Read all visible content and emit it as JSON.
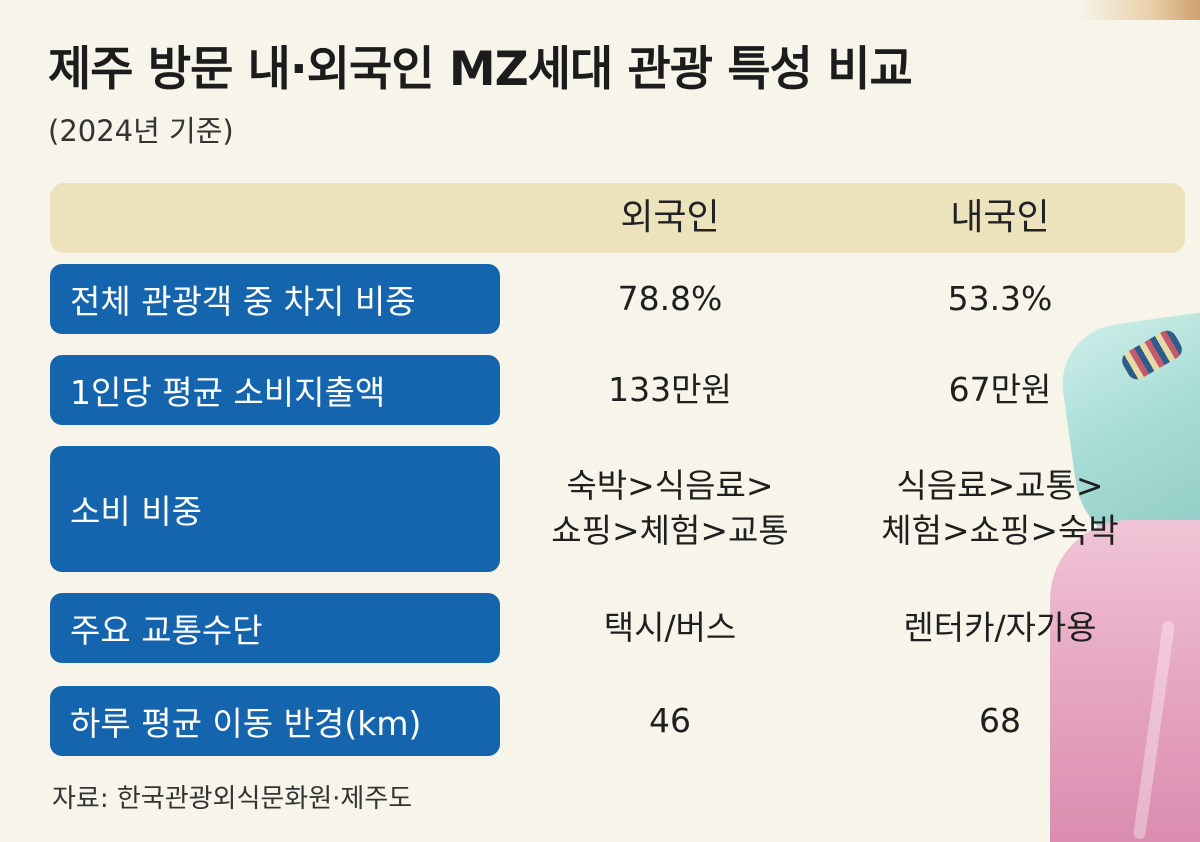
{
  "title": "제주 방문 내·외국인 MZ세대 관광 특성 비교",
  "subtitle": "(2024년 기준)",
  "source": "자료: 한국관광외식문화원·제주도",
  "colors": {
    "label_bg": "#1465ae",
    "header_bg": "#ece3bd",
    "background": "#f7f4ea"
  },
  "chart_data": {
    "type": "table",
    "title": "제주 방문 내·외국인 MZ세대 관광 특성 비교",
    "subtitle": "(2024년 기준)",
    "columns": [
      "외국인",
      "내국인"
    ],
    "rows": [
      {
        "label": "전체 관광객 중 차지 비중",
        "foreign": "78.8%",
        "domestic": "53.3%"
      },
      {
        "label": "1인당 평균 소비지출액",
        "foreign": "133만원",
        "domestic": "67만원"
      },
      {
        "label": "소비 비중",
        "foreign_lines": [
          "숙박>식음료>",
          "쇼핑>체험>교통"
        ],
        "domestic_lines": [
          "식음료>교통>",
          "체험>쇼핑>숙박"
        ]
      },
      {
        "label": "주요 교통수단",
        "foreign": "택시/버스",
        "domestic": "렌터카/자가용"
      },
      {
        "label": "하루 평균 이동 반경(km)",
        "foreign": "46",
        "domestic": "68"
      }
    ]
  }
}
